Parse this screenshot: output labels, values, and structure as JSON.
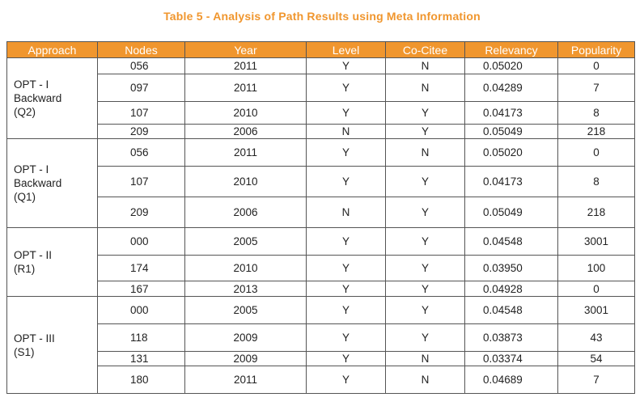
{
  "caption": "Table 5 - Analysis of Path Results using Meta Information",
  "columns": [
    "Approach",
    "Nodes",
    "Year",
    "Level",
    "Co-Citee",
    "Relevancy",
    "Popularity"
  ],
  "groups": [
    {
      "approach_lines": [
        "OPT - I",
        "Backward",
        "(Q2)"
      ],
      "rows": [
        {
          "nodes": "056",
          "year": "2011",
          "level": "Y",
          "cocitee": "N",
          "relevancy": "0.05020",
          "popularity": "0"
        },
        {
          "nodes": "097",
          "year": "2011",
          "level": "Y",
          "cocitee": "N",
          "relevancy": "0.04289",
          "popularity": "7"
        },
        {
          "nodes": "107",
          "year": "2010",
          "level": "Y",
          "cocitee": "Y",
          "relevancy": "0.04173",
          "popularity": "8"
        },
        {
          "nodes": "209",
          "year": "2006",
          "level": "N",
          "cocitee": "Y",
          "relevancy": "0.05049",
          "popularity": "218"
        }
      ]
    },
    {
      "approach_lines": [
        "OPT - I",
        "Backward",
        "(Q1)"
      ],
      "rows": [
        {
          "nodes": "056",
          "year": "2011",
          "level": "Y",
          "cocitee": "N",
          "relevancy": "0.05020",
          "popularity": "0"
        },
        {
          "nodes": "107",
          "year": "2010",
          "level": "Y",
          "cocitee": "Y",
          "relevancy": "0.04173",
          "popularity": "8"
        },
        {
          "nodes": "209",
          "year": "2006",
          "level": "N",
          "cocitee": "Y",
          "relevancy": "0.05049",
          "popularity": "218"
        }
      ]
    },
    {
      "approach_lines": [
        "OPT - II",
        "(R1)"
      ],
      "rows": [
        {
          "nodes": "000",
          "year": "2005",
          "level": "Y",
          "cocitee": "Y",
          "relevancy": "0.04548",
          "popularity": "3001"
        },
        {
          "nodes": "174",
          "year": "2010",
          "level": "Y",
          "cocitee": "Y",
          "relevancy": "0.03950",
          "popularity": "100"
        },
        {
          "nodes": "167",
          "year": "2013",
          "level": "Y",
          "cocitee": "Y",
          "relevancy": "0.04928",
          "popularity": "0"
        }
      ]
    },
    {
      "approach_lines": [
        "OPT - III",
        "(S1)"
      ],
      "rows": [
        {
          "nodes": "000",
          "year": "2005",
          "level": "Y",
          "cocitee": "Y",
          "relevancy": "0.04548",
          "popularity": "3001"
        },
        {
          "nodes": "118",
          "year": "2009",
          "level": "Y",
          "cocitee": "Y",
          "relevancy": "0.03873",
          "popularity": "43"
        },
        {
          "nodes": "131",
          "year": "2009",
          "level": "Y",
          "cocitee": "N",
          "relevancy": "0.03374",
          "popularity": "54"
        },
        {
          "nodes": "180",
          "year": "2011",
          "level": "Y",
          "cocitee": "N",
          "relevancy": "0.04689",
          "popularity": "7"
        }
      ]
    }
  ]
}
